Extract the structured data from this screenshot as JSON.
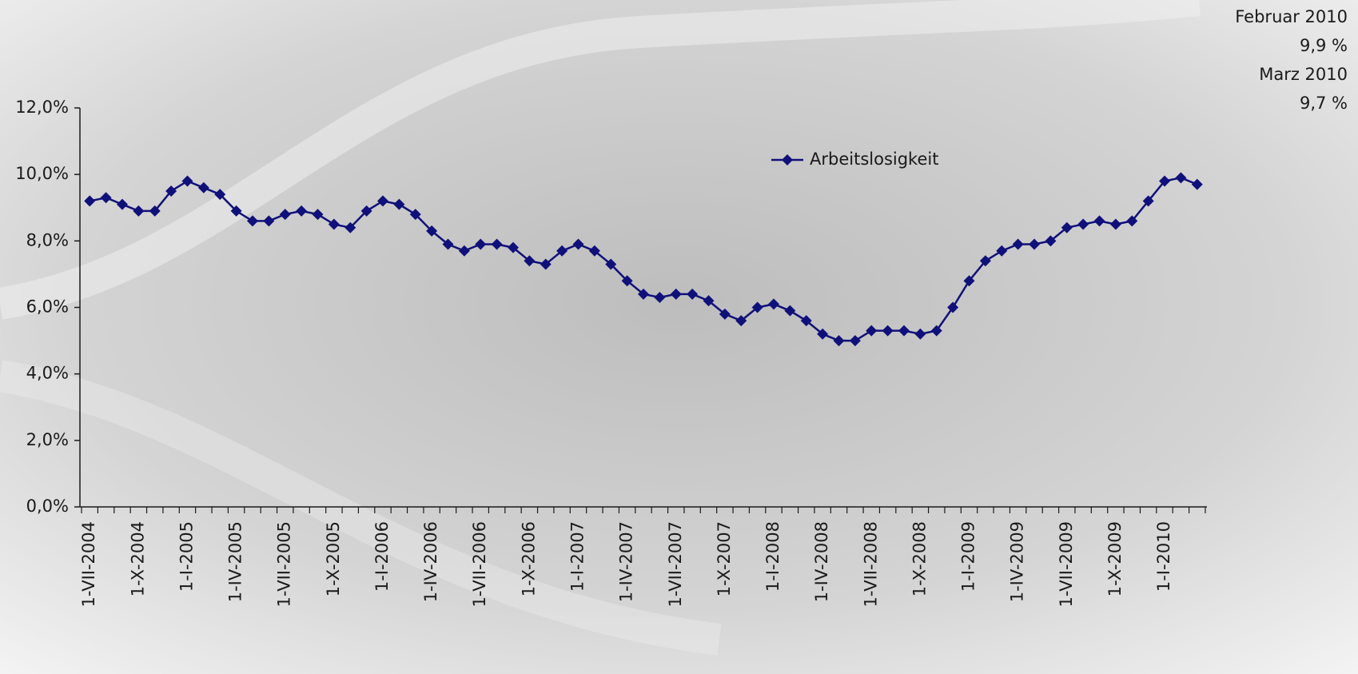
{
  "chart_data": {
    "type": "line",
    "categories": [
      "1-VII-2004",
      null,
      null,
      "1-X-2004",
      null,
      null,
      "1-I-2005",
      null,
      null,
      "1-IV-2005",
      null,
      null,
      "1-VII-2005",
      null,
      null,
      "1-X-2005",
      null,
      null,
      "1-I-2006",
      null,
      null,
      "1-IV-2006",
      null,
      null,
      "1-VII-2006",
      null,
      null,
      "1-X-2006",
      null,
      null,
      "1-I-2007",
      null,
      null,
      "1-IV-2007",
      null,
      null,
      "1-VII-2007",
      null,
      null,
      "1-X-2007",
      null,
      null,
      "1-I-2008",
      null,
      null,
      "1-IV-2008",
      null,
      null,
      "1-VII-2008",
      null,
      null,
      "1-X-2008",
      null,
      null,
      "1-I-2009",
      null,
      null,
      "1-IV-2009",
      null,
      null,
      "1-VII-2009",
      null,
      null,
      "1-X-2009",
      null,
      null,
      "1-I-2010",
      null,
      null
    ],
    "series": [
      {
        "name": "Arbeitslosigkeit",
        "color": "#10107a",
        "values": [
          9.2,
          9.3,
          9.1,
          8.9,
          8.9,
          9.5,
          9.8,
          9.6,
          9.4,
          8.9,
          8.6,
          8.6,
          8.8,
          8.9,
          8.8,
          8.5,
          8.4,
          8.9,
          9.2,
          9.1,
          8.8,
          8.3,
          7.9,
          7.7,
          7.9,
          7.9,
          7.8,
          7.4,
          7.3,
          7.7,
          7.9,
          7.7,
          7.3,
          6.8,
          6.4,
          6.3,
          6.4,
          6.4,
          6.2,
          5.8,
          5.6,
          6.0,
          6.1,
          5.9,
          5.6,
          5.2,
          5.0,
          5.0,
          5.3,
          5.3,
          5.3,
          5.2,
          5.3,
          6.0,
          6.8,
          7.4,
          7.7,
          7.9,
          7.9,
          8.0,
          8.4,
          8.5,
          8.6,
          8.5,
          8.6,
          9.2,
          9.8,
          9.9,
          9.7
        ]
      }
    ],
    "ylim": [
      0,
      12
    ],
    "yticks": [
      {
        "value": 0,
        "label": "0,0%"
      },
      {
        "value": 2,
        "label": "2,0%"
      },
      {
        "value": 4,
        "label": "4,0%"
      },
      {
        "value": 6,
        "label": "6,0%"
      },
      {
        "value": 8,
        "label": "8,0%"
      },
      {
        "value": 10,
        "label": "10,0%"
      },
      {
        "value": 12,
        "label": "12,0%"
      }
    ],
    "grid": false,
    "annotations": [
      "Februar 2010",
      "9,9 %",
      "Marz 2010",
      "9,7 %"
    ]
  }
}
